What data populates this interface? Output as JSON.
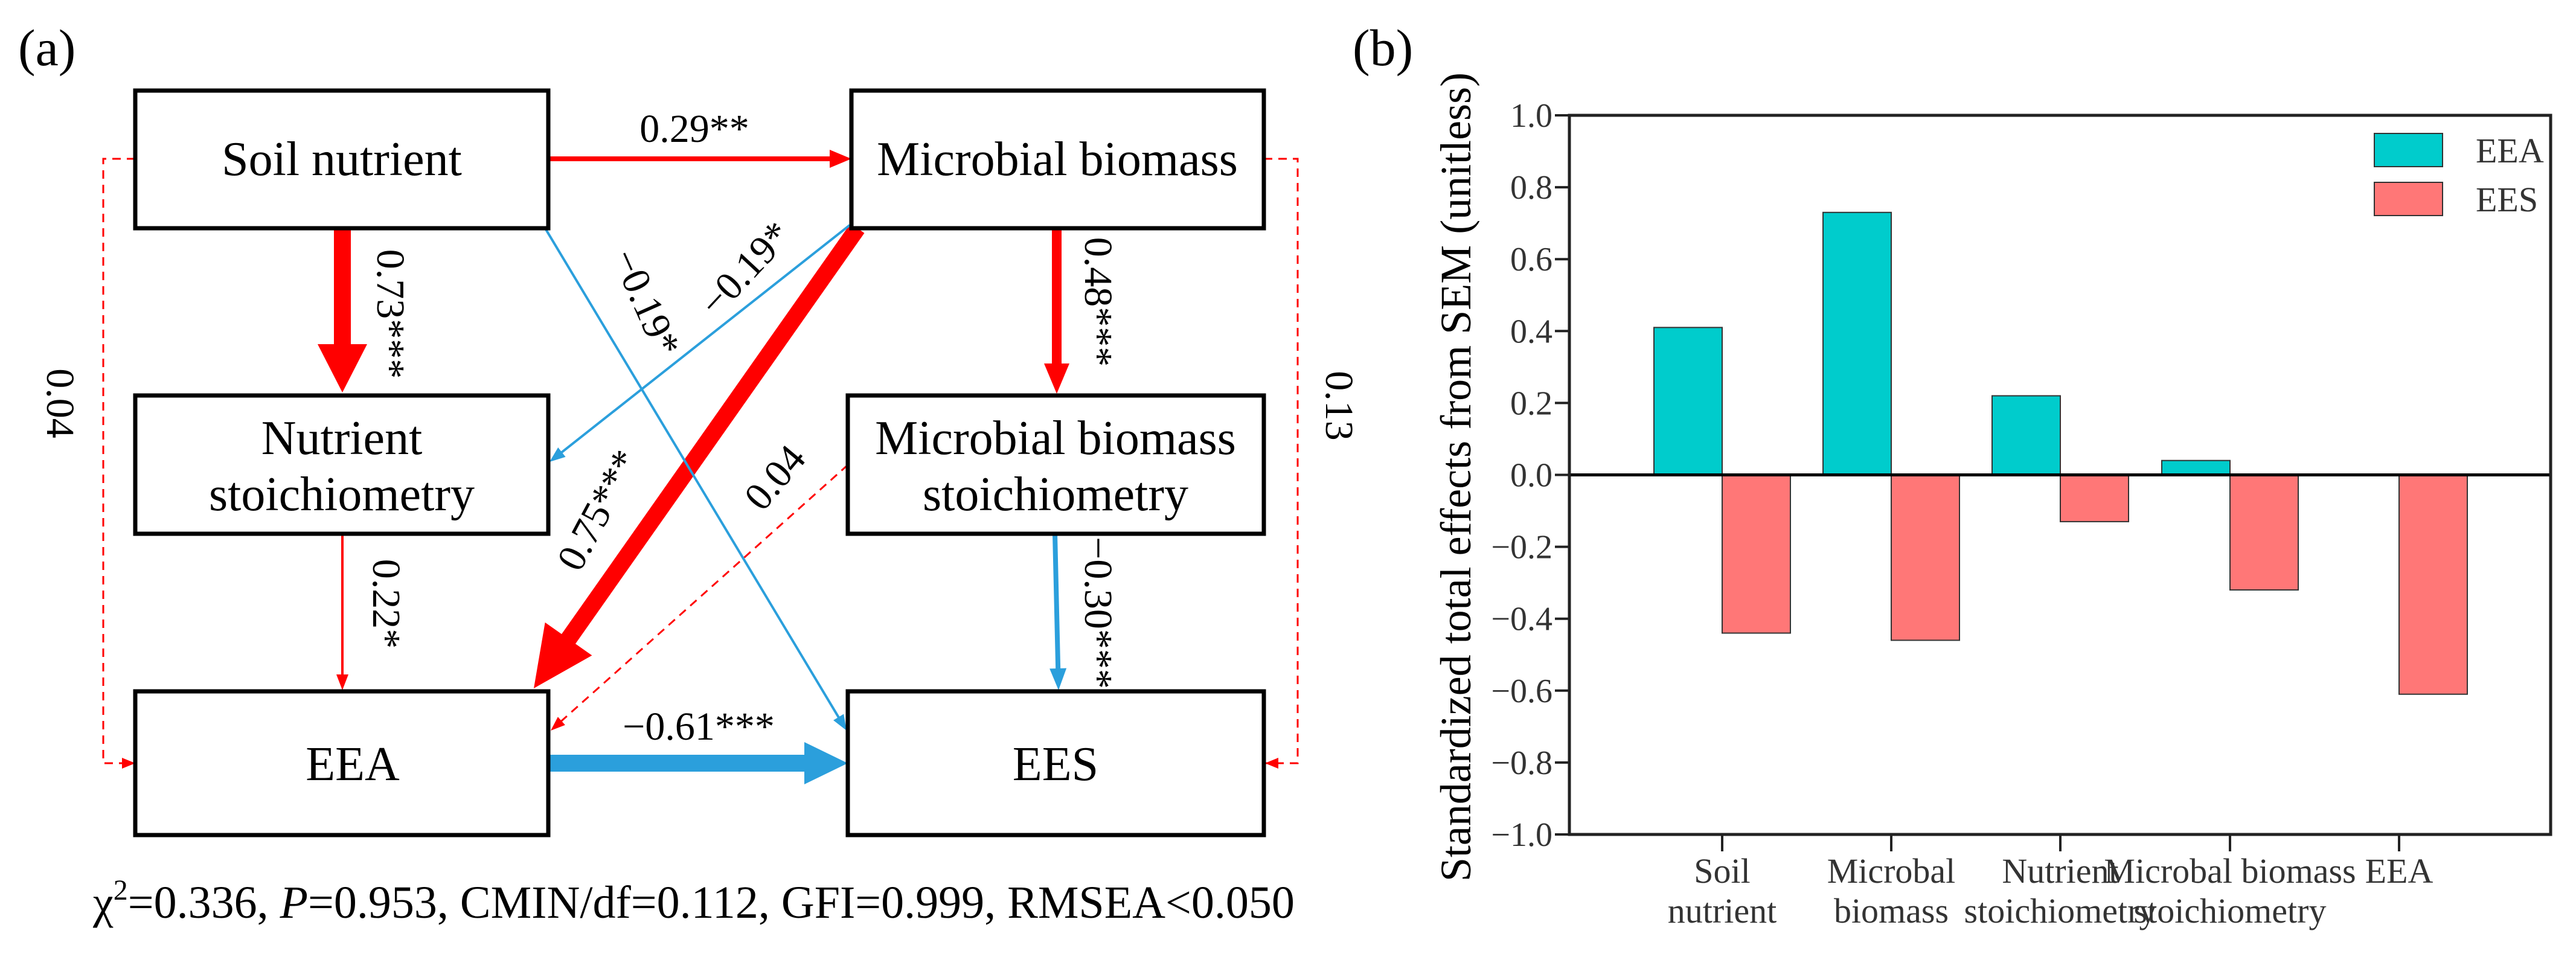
{
  "panel_a": {
    "label": "(a)",
    "nodes": {
      "soil_nutrient": "Soil nutrient",
      "microbial_biomass": "Microbial biomass",
      "nutrient_stoich_1": "Nutrient",
      "nutrient_stoich_2": "stoichiometry",
      "mb_stoich_1": "Microbial biomass",
      "mb_stoich_2": "stoichiometry",
      "eea": "EEA",
      "ees": "EES"
    },
    "paths": {
      "sn_mb": "0.29**",
      "sn_ns": "0.73***",
      "mb_mbs": "0.48***",
      "ns_eea": "0.22*",
      "mbs_ees": "−0.30***",
      "eea_ees": "−0.61***",
      "mb_eea": "0.75***",
      "mb_ns": "−0.19*",
      "sn_ees": "−0.19*",
      "mbs_eea": "0.04",
      "sn_eea": "0.04",
      "mb_ees": "0.13"
    },
    "colors": {
      "positive": "#ff0000",
      "negative": "#2b9fdc"
    },
    "stats": {
      "chi_symbol": "χ",
      "chi_sup": "2",
      "chi_value": "=0.336, ",
      "p_symbol": "P",
      "rest": "=0.953, CMIN/df=0.112, GFI=0.999, RMSEA<0.050"
    }
  },
  "panel_b": {
    "label": "(b)"
  },
  "chart_data": {
    "type": "bar",
    "categories": [
      [
        "Soil",
        "nutrient"
      ],
      [
        "Microbal",
        "biomass"
      ],
      [
        "Nutrient",
        "stoichiometry"
      ],
      [
        "Microbal biomass",
        "stoichiometry"
      ],
      [
        "EEA",
        ""
      ]
    ],
    "series": [
      {
        "name": "EEA",
        "color": "#00cccc",
        "values": [
          0.41,
          0.73,
          0.22,
          0.04,
          null
        ]
      },
      {
        "name": "EES",
        "color": "#ff7777",
        "values": [
          -0.44,
          -0.46,
          -0.13,
          -0.32,
          -0.61
        ]
      }
    ],
    "ylabel": "Standardized total effects from SEM (unitless)",
    "xlabel": "",
    "ylim": [
      -1.0,
      1.0
    ],
    "yticks": [
      "1.0",
      "0.8",
      "0.6",
      "0.4",
      "0.2",
      "0.0",
      "−0.2",
      "−0.4",
      "−0.6",
      "−0.8",
      "−1.0"
    ],
    "legend_position": "top-right",
    "grid": false
  }
}
